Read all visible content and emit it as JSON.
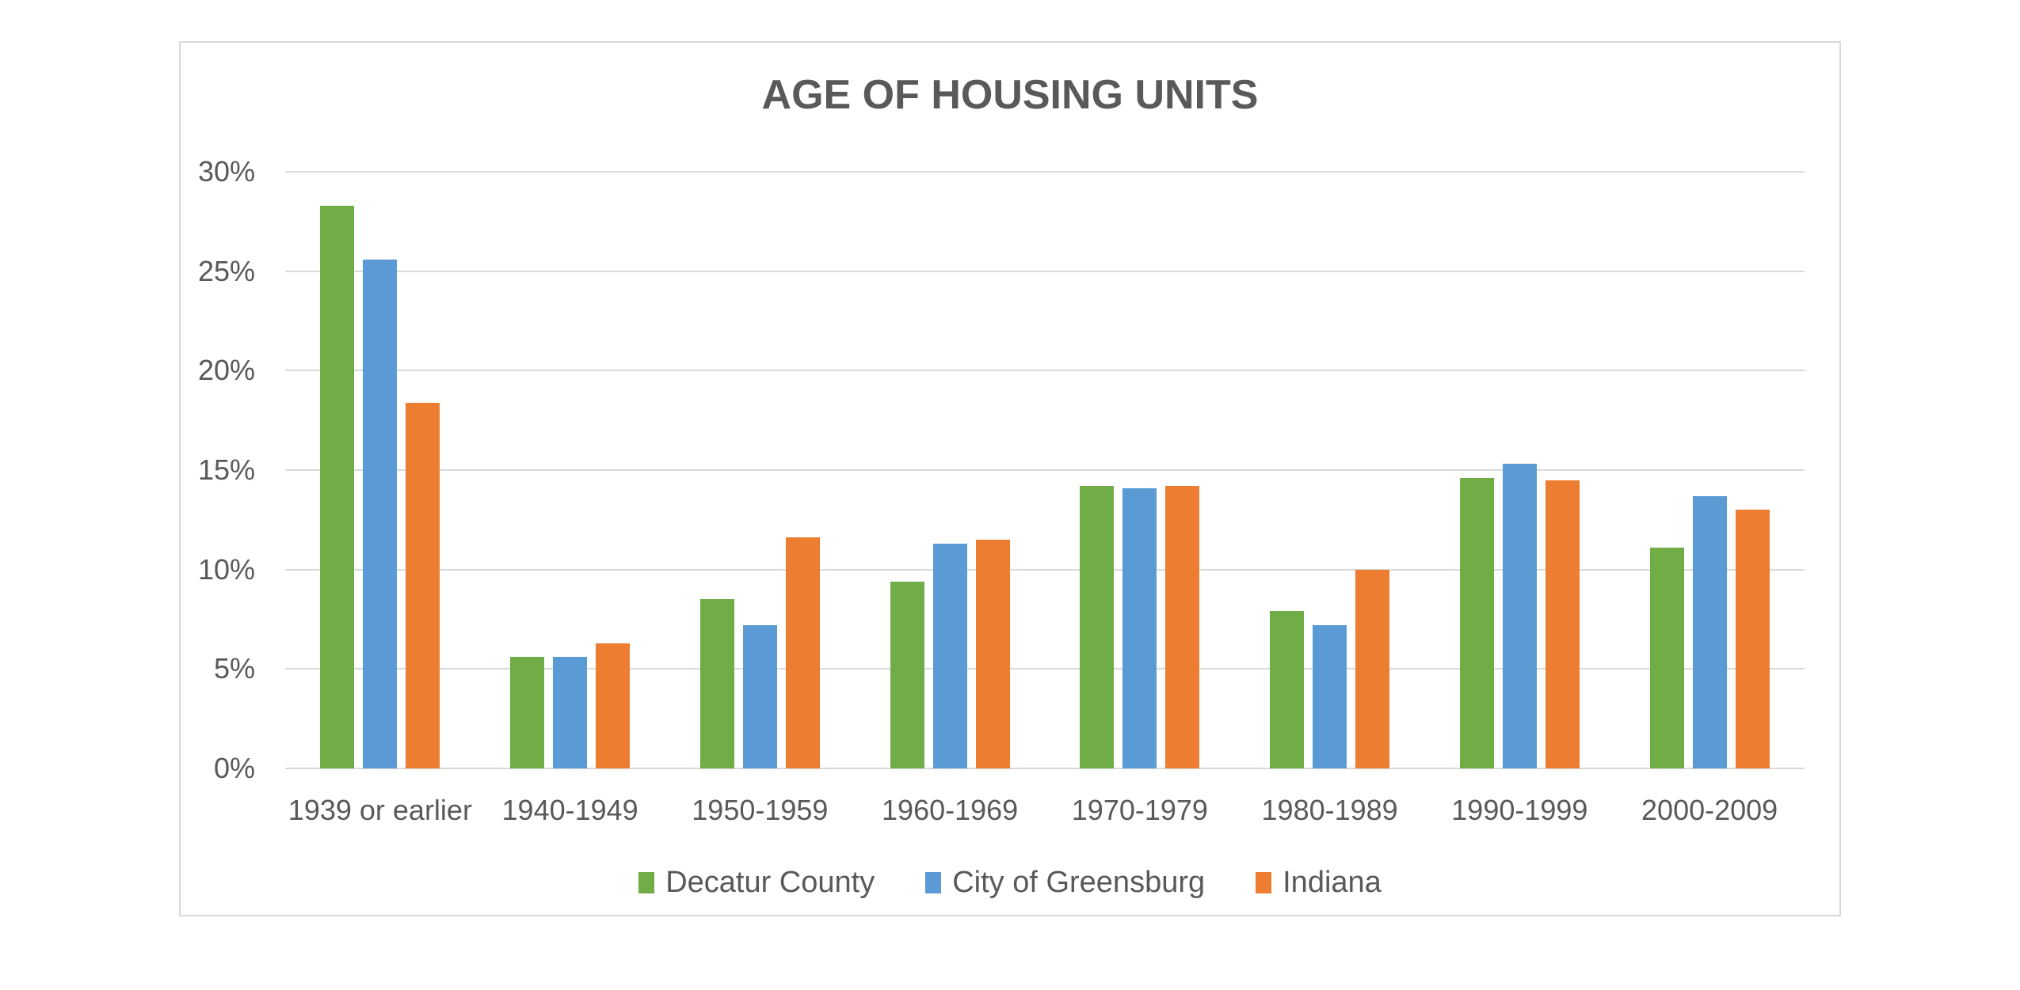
{
  "chart_data": {
    "type": "bar",
    "title": "AGE OF HOUSING UNITS",
    "categories": [
      "1939 or earlier",
      "1940-1949",
      "1950-1959",
      "1960-1969",
      "1970-1979",
      "1980-1989",
      "1990-1999",
      "2000-2009"
    ],
    "series": [
      {
        "name": "Decatur County",
        "color": "#70AD47",
        "values": [
          28.3,
          5.6,
          8.5,
          9.4,
          14.2,
          7.9,
          14.6,
          11.1
        ]
      },
      {
        "name": "City of Greensburg",
        "color": "#5B9BD5",
        "values": [
          25.6,
          5.6,
          7.2,
          11.3,
          14.1,
          7.2,
          15.3,
          13.7
        ]
      },
      {
        "name": "Indiana",
        "color": "#ED7D31",
        "values": [
          18.4,
          6.3,
          11.6,
          11.5,
          14.2,
          10.0,
          14.5,
          13.0
        ]
      }
    ],
    "ylim": [
      0,
      30
    ],
    "ytick_step": 5,
    "ytick_labels": [
      "0%",
      "5%",
      "10%",
      "15%",
      "20%",
      "25%",
      "30%"
    ],
    "grid": true,
    "legend_position": "bottom"
  },
  "colors": {
    "text": "#595959",
    "gridline": "#D9D9D9",
    "frame_border": "#D9D9D9",
    "background": "#FFFFFF"
  }
}
